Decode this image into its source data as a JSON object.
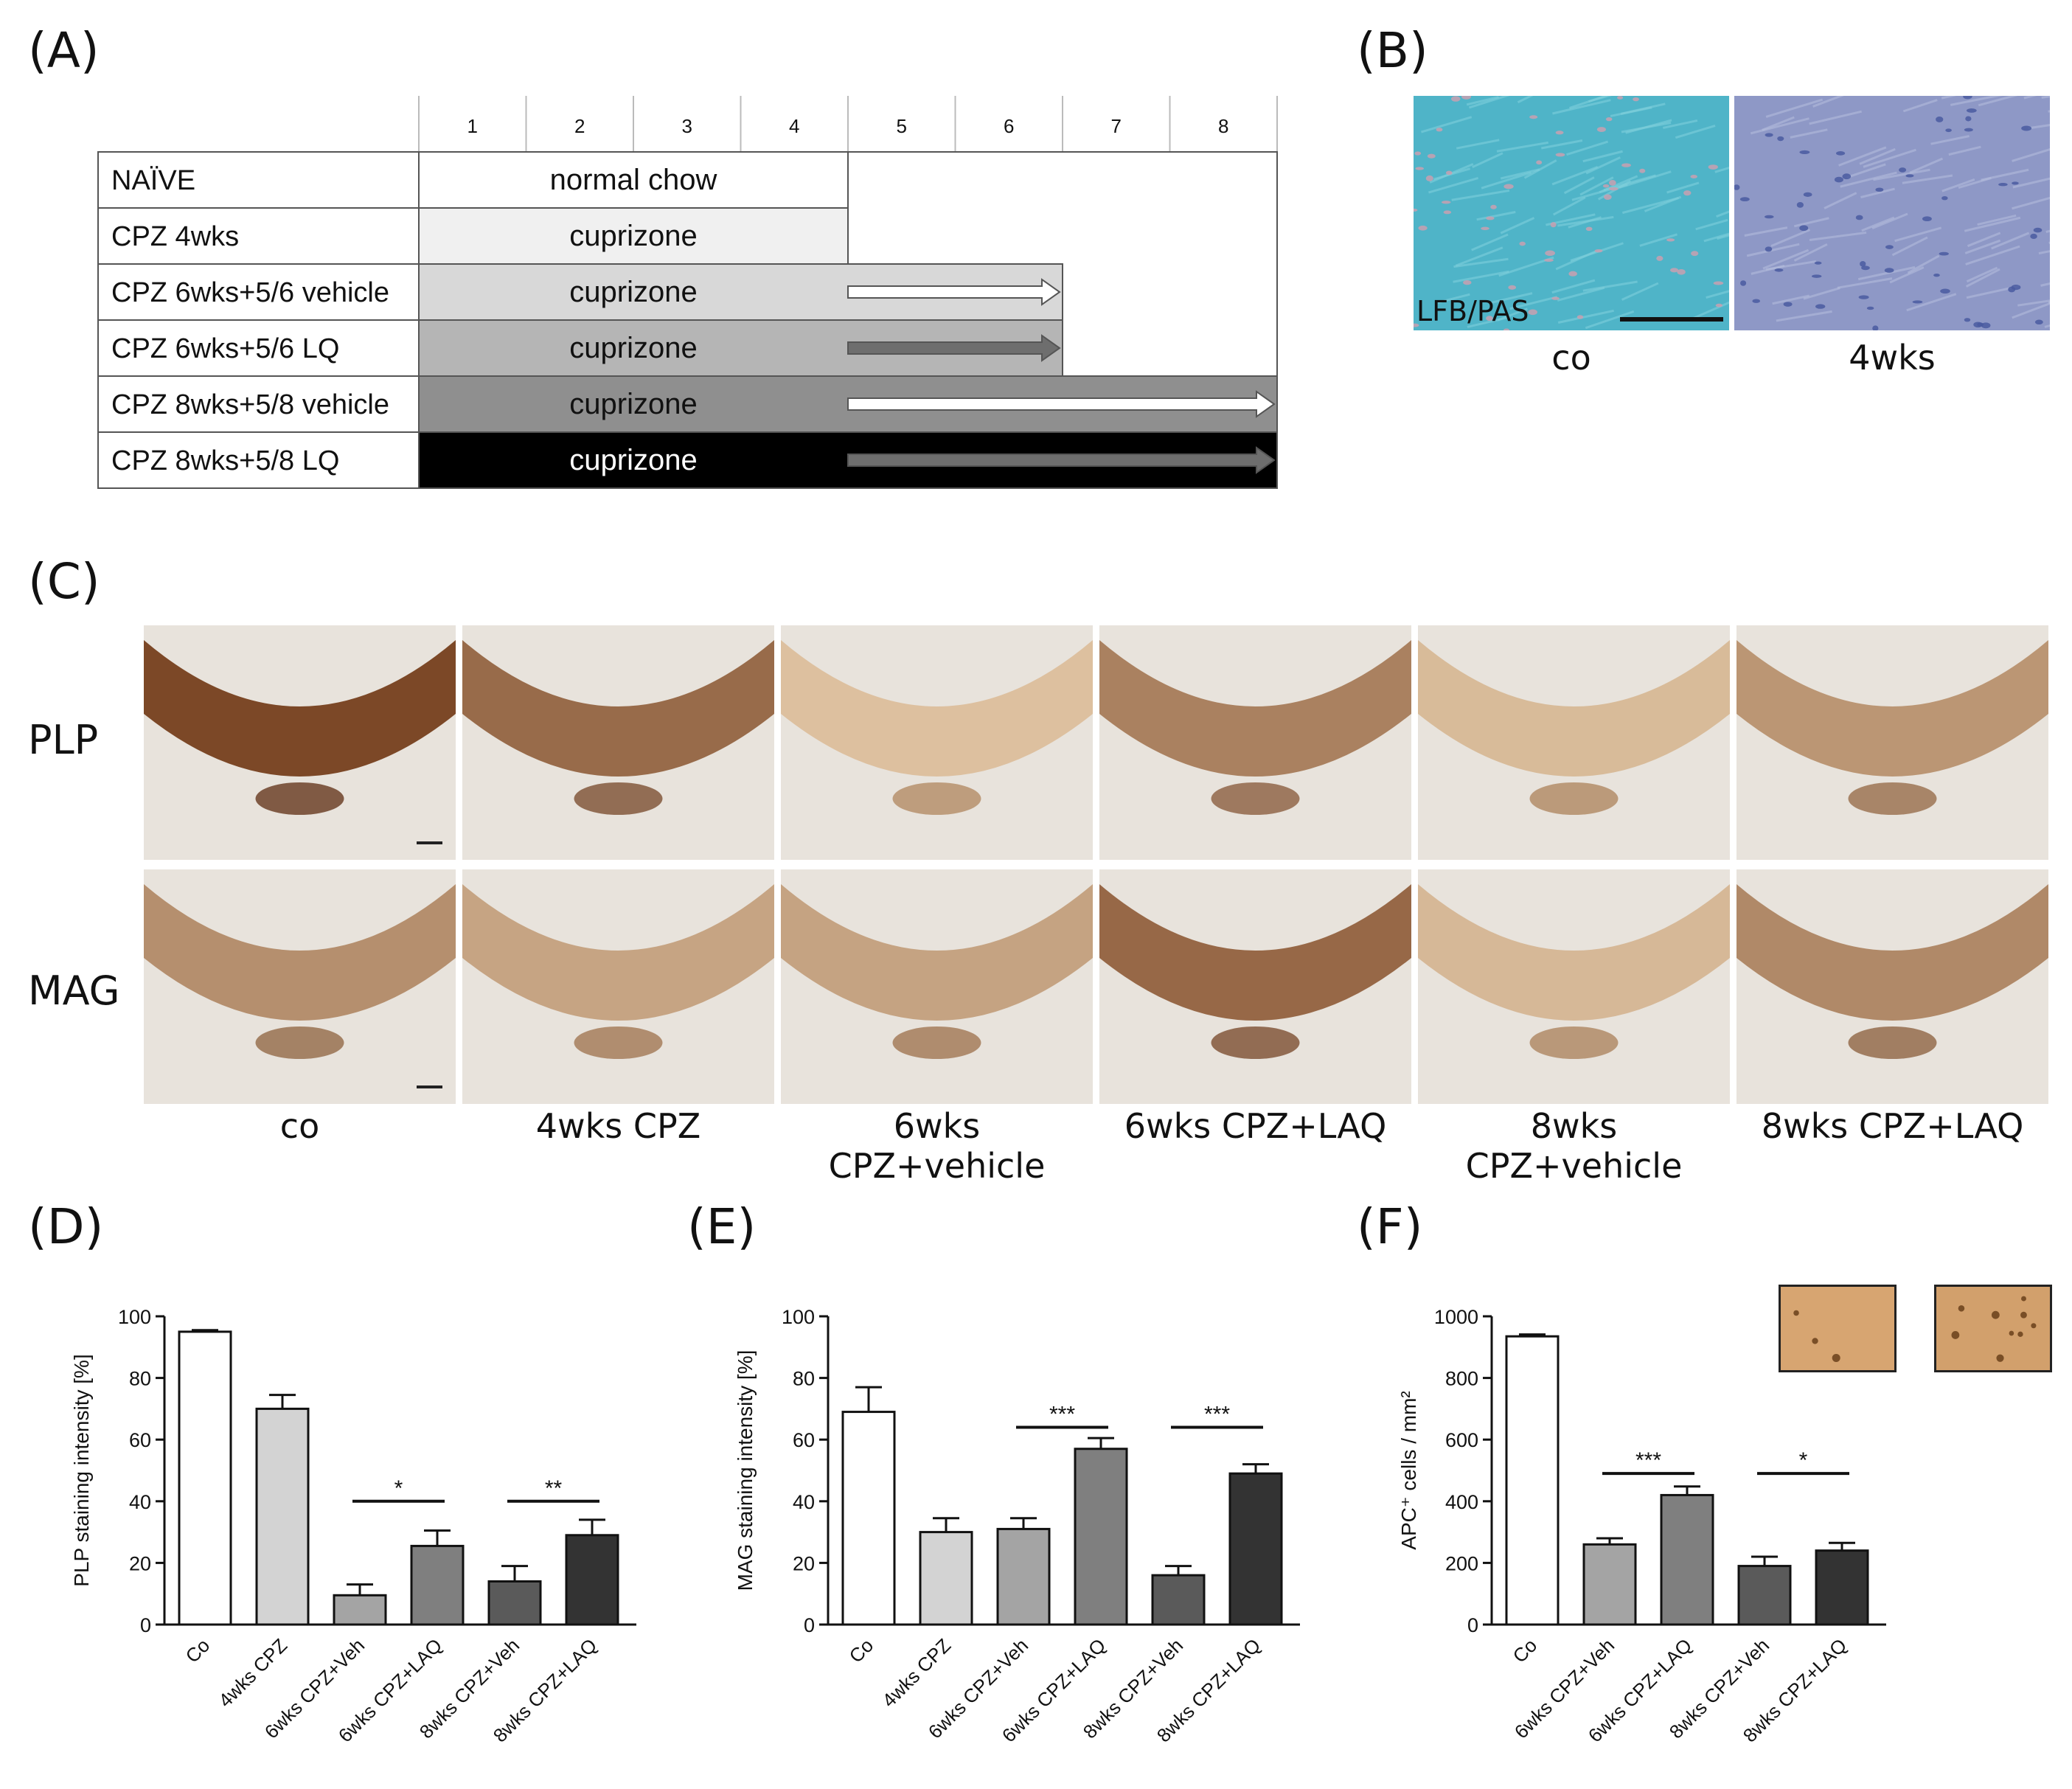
{
  "panels": {
    "A": "(A)",
    "B": "(B)",
    "C": "(C)",
    "D": "(D)",
    "E": "(E)",
    "F": "(F)"
  },
  "panel_a": {
    "weeks": [
      "1",
      "2",
      "3",
      "4",
      "5",
      "6",
      "7",
      "8"
    ],
    "groups": [
      {
        "name": "NAÏVE",
        "bar_text": "normal chow",
        "bar_weeks": 4,
        "bar_color": "#ffffff",
        "text_color": "#111111",
        "treat_weeks": 0,
        "arrow_color": ""
      },
      {
        "name": "CPZ 4wks",
        "bar_text": "cuprizone",
        "bar_weeks": 4,
        "bar_color": "#f0f0f0",
        "text_color": "#111111",
        "treat_weeks": 0,
        "arrow_color": ""
      },
      {
        "name": "CPZ 6wks+5/6 vehicle",
        "bar_text": "cuprizone",
        "bar_weeks": 6,
        "bar_color": "#d8d8d8",
        "text_color": "#111111",
        "treat_weeks": 2,
        "arrow_color": "#ffffff"
      },
      {
        "name": "CPZ 6wks+5/6 LQ",
        "bar_text": "cuprizone",
        "bar_weeks": 6,
        "bar_color": "#b5b5b5",
        "text_color": "#111111",
        "treat_weeks": 2,
        "arrow_color": "#6e6e6e"
      },
      {
        "name": "CPZ 8wks+5/8 vehicle",
        "bar_text": "cuprizone",
        "bar_weeks": 8,
        "bar_color": "#8f8f8f",
        "text_color": "#111111",
        "treat_weeks": 4,
        "arrow_color": "#ffffff"
      },
      {
        "name": "CPZ 8wks+5/8 LQ",
        "bar_text": "cuprizone",
        "bar_weeks": 8,
        "bar_color": "#000000",
        "text_color": "#ffffff",
        "treat_weeks": 4,
        "arrow_color": "#6e6e6e"
      }
    ]
  },
  "panel_b": {
    "stain_label": "LFB/PAS",
    "captions": [
      "co",
      "4wks"
    ],
    "colors": {
      "co": "#4fb4c8",
      "wks4": "#8e98c6"
    }
  },
  "panel_c": {
    "rows": [
      "PLP",
      "MAG"
    ],
    "columns": [
      "co",
      "4wks CPZ",
      "6wks CPZ+vehicle",
      "6wks CPZ+LAQ",
      "8wks CPZ+vehicle",
      "8wks CPZ+LAQ"
    ],
    "plp_intensity": [
      0.95,
      0.7,
      0.1,
      0.55,
      0.14,
      0.4
    ],
    "mag_intensity": [
      0.45,
      0.3,
      0.31,
      0.72,
      0.16,
      0.49
    ]
  },
  "chart_data": [
    {
      "type": "bar",
      "panel": "D",
      "ylabel": "PLP staining intensity [%]",
      "categories": [
        "Co",
        "4wks CPZ",
        "6wks CPZ+Veh",
        "6wks CPZ+LAQ",
        "8wks CPZ+Veh",
        "8wks CPZ+LAQ"
      ],
      "values": [
        95,
        70,
        9.5,
        25.5,
        14,
        29
      ],
      "errors": [
        0.5,
        4.5,
        3.5,
        5,
        5,
        5
      ],
      "colors": [
        "#ffffff",
        "#d3d3d3",
        "#a4a4a4",
        "#7f7f7f",
        "#5a5a5a",
        "#333333"
      ],
      "ylim": [
        0,
        100
      ],
      "yticks": [
        0,
        20,
        40,
        60,
        80,
        100
      ],
      "significance": [
        {
          "from": 2,
          "to": 3,
          "y": 40,
          "label": "*"
        },
        {
          "from": 4,
          "to": 5,
          "y": 40,
          "label": "**"
        }
      ]
    },
    {
      "type": "bar",
      "panel": "E",
      "ylabel": "MAG staining intensity [%]",
      "categories": [
        "Co",
        "4wks CPZ",
        "6wks CPZ+Veh",
        "6wks CPZ+LAQ",
        "8wks CPZ+Veh",
        "8wks CPZ+LAQ"
      ],
      "values": [
        69,
        30,
        31,
        57,
        16,
        49
      ],
      "errors": [
        8,
        4.5,
        3.5,
        3.5,
        3,
        3
      ],
      "colors": [
        "#ffffff",
        "#d3d3d3",
        "#a4a4a4",
        "#7f7f7f",
        "#5a5a5a",
        "#333333"
      ],
      "ylim": [
        0,
        100
      ],
      "yticks": [
        0,
        20,
        40,
        60,
        80,
        100
      ],
      "significance": [
        {
          "from": 2,
          "to": 3,
          "y": 64,
          "label": "***"
        },
        {
          "from": 4,
          "to": 5,
          "y": 64,
          "label": "***"
        }
      ]
    },
    {
      "type": "bar",
      "panel": "F",
      "ylabel": "APC⁺ cells / mm²",
      "categories": [
        "Co",
        "6wks CPZ+Veh",
        "6wks CPZ+LAQ",
        "8wks CPZ+Veh",
        "8wks CPZ+LAQ"
      ],
      "values": [
        935,
        260,
        420,
        190,
        240
      ],
      "errors": [
        6,
        20,
        28,
        30,
        25
      ],
      "colors": [
        "#ffffff",
        "#a4a4a4",
        "#7f7f7f",
        "#5a5a5a",
        "#333333"
      ],
      "ylim": [
        0,
        1000
      ],
      "yticks": [
        0,
        200,
        400,
        600,
        800,
        1000
      ],
      "significance": [
        {
          "from": 1,
          "to": 2,
          "y": 490,
          "label": "***"
        },
        {
          "from": 3,
          "to": 4,
          "y": 490,
          "label": "*"
        }
      ]
    }
  ]
}
